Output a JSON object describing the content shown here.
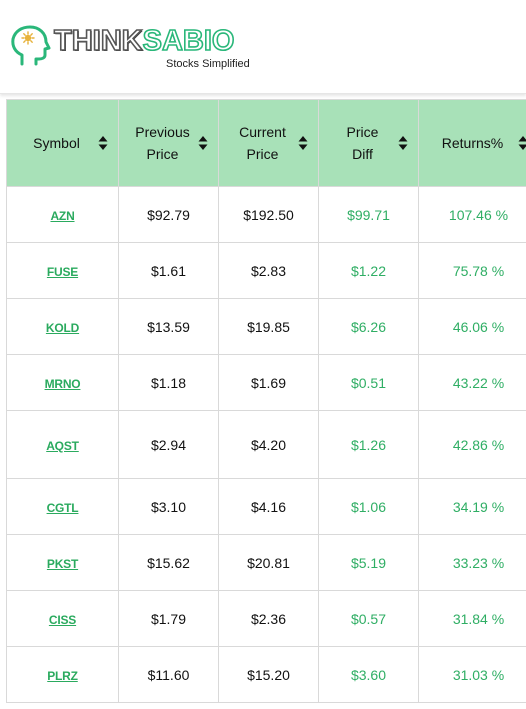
{
  "brand": {
    "name_part1": "THINK",
    "name_part2": "SABIO",
    "tagline": "Stocks Simplified"
  },
  "table": {
    "columns": [
      {
        "key": "symbol",
        "label_lines": [
          "Symbol"
        ]
      },
      {
        "key": "previous",
        "label_lines": [
          "Previous",
          "Price"
        ]
      },
      {
        "key": "current",
        "label_lines": [
          "Current",
          "Price"
        ]
      },
      {
        "key": "diff",
        "label_lines": [
          "Price",
          "Diff"
        ]
      },
      {
        "key": "returns",
        "label_lines": [
          "Returns%"
        ]
      }
    ],
    "rows": [
      {
        "symbol": "AZN",
        "previous": "$92.79",
        "current": "$192.50",
        "diff": "$99.71",
        "returns": "107.46 %"
      },
      {
        "symbol": "FUSE",
        "previous": "$1.61",
        "current": "$2.83",
        "diff": "$1.22",
        "returns": "75.78 %"
      },
      {
        "symbol": "KOLD",
        "previous": "$13.59",
        "current": "$19.85",
        "diff": "$6.26",
        "returns": "46.06 %"
      },
      {
        "symbol": "MRNO",
        "previous": "$1.18",
        "current": "$1.69",
        "diff": "$0.51",
        "returns": "43.22 %"
      },
      {
        "symbol": "AQST",
        "previous": "$2.94",
        "current": "$4.20",
        "diff": "$1.26",
        "returns": "42.86 %"
      },
      {
        "symbol": "CGTL",
        "previous": "$3.10",
        "current": "$4.16",
        "diff": "$1.06",
        "returns": "34.19 %"
      },
      {
        "symbol": "PKST",
        "previous": "$15.62",
        "current": "$20.81",
        "diff": "$5.19",
        "returns": "33.23 %"
      },
      {
        "symbol": "CISS",
        "previous": "$1.79",
        "current": "$2.36",
        "diff": "$0.57",
        "returns": "31.84 %"
      },
      {
        "symbol": "PLRZ",
        "previous": "$11.60",
        "current": "$15.20",
        "diff": "$3.60",
        "returns": "31.03 %"
      }
    ]
  },
  "colors": {
    "header_bg": "#a8e1b8",
    "symbol_link": "#2aaa5e",
    "gain_text": "#2fae64",
    "brand_green": "#2ab77a"
  },
  "icons": {
    "sort": "sort-arrows-icon",
    "logo": "head-silhouette-icon"
  }
}
